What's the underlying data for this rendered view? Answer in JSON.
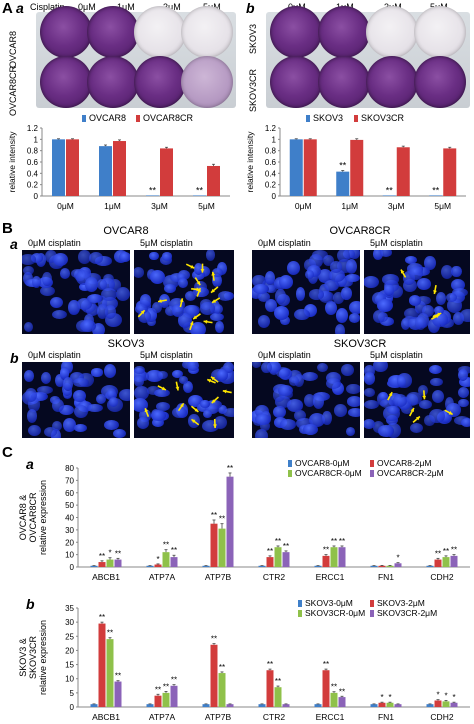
{
  "panelA": {
    "letter": "A",
    "a": {
      "letter": "a",
      "cisplatin_label": "Cisplatin",
      "doses": [
        "0μM",
        "1μM",
        "3μM",
        "5μM"
      ],
      "row_labels": [
        "OVCAR8",
        "OVCAR8CR"
      ],
      "wells": [
        [
          "purple",
          "purple",
          "clear",
          "clear"
        ],
        [
          "purple",
          "purple",
          "purple",
          "lavender"
        ]
      ]
    },
    "b": {
      "letter": "b",
      "doses": [
        "0μM",
        "1μM",
        "3μM",
        "5μM"
      ],
      "row_labels": [
        "SKOV3",
        "SKOV3CR"
      ],
      "wells": [
        [
          "purple",
          "purple",
          "clear",
          "clear"
        ],
        [
          "purple",
          "purple",
          "purple",
          "purple"
        ]
      ]
    }
  },
  "panelB": {
    "letter": "B",
    "a": {
      "letter": "a",
      "groups": [
        {
          "title": "OVCAR8",
          "left": "0μM cisplatin",
          "right": "5μM cisplatin"
        },
        {
          "title": "OVCAR8CR",
          "left": "0μM cisplatin",
          "right": "5μM cisplatin"
        }
      ]
    },
    "b": {
      "letter": "b",
      "groups": [
        {
          "title": "SKOV3",
          "left": "0μM cisplatin",
          "right": "5μM cisplatin"
        },
        {
          "title": "SKOV3CR",
          "left": "0μM cisplatin",
          "right": "5μM cisplatin"
        }
      ]
    }
  },
  "panelC": {
    "letter": "C",
    "a_letter": "a",
    "b_letter": "b"
  },
  "chart_data": [
    {
      "type": "bar",
      "categories": [
        "0μM",
        "1μM",
        "3μM",
        "5μM"
      ],
      "ylabel": "relative intensity",
      "ylim": [
        0,
        1.2
      ],
      "yticks": [
        0,
        0.2,
        0.4,
        0.6,
        0.8,
        1,
        1.2
      ],
      "series": [
        {
          "name": "OVCAR8",
          "color": "#3f7fc9",
          "values": [
            1.0,
            0.88,
            0.01,
            0.01
          ],
          "errors": [
            0.01,
            0.02,
            0.0,
            0.0
          ]
        },
        {
          "name": "OVCAR8CR",
          "color": "#d23c3c",
          "values": [
            1.0,
            0.97,
            0.84,
            0.53
          ],
          "errors": [
            0.01,
            0.02,
            0.02,
            0.03
          ]
        }
      ],
      "annotations": [
        {
          "series": 0,
          "index": 2,
          "text": "**"
        },
        {
          "series": 0,
          "index": 3,
          "text": "**"
        }
      ],
      "legend": "top"
    },
    {
      "type": "bar",
      "categories": [
        "0μM",
        "1μM",
        "3μM",
        "5μM"
      ],
      "ylabel": "relative intensity",
      "ylim": [
        0,
        1.2
      ],
      "yticks": [
        0,
        0.2,
        0.4,
        0.6,
        0.8,
        1,
        1.2
      ],
      "series": [
        {
          "name": "SKOV3",
          "color": "#3f7fc9",
          "values": [
            1.0,
            0.43,
            0.01,
            0.01
          ],
          "errors": [
            0.01,
            0.02,
            0.0,
            0.0
          ]
        },
        {
          "name": "SKOV3CR",
          "color": "#d23c3c",
          "values": [
            1.0,
            0.99,
            0.86,
            0.84
          ],
          "errors": [
            0.01,
            0.02,
            0.02,
            0.02
          ]
        }
      ],
      "annotations": [
        {
          "series": 0,
          "index": 1,
          "text": "**"
        },
        {
          "series": 0,
          "index": 2,
          "text": "**"
        },
        {
          "series": 0,
          "index": 3,
          "text": "**"
        }
      ],
      "legend": "top"
    },
    {
      "type": "bar",
      "categories": [
        "ABCB1",
        "ATP7A",
        "ATP7B",
        "CTR2",
        "ERCC1",
        "FN1",
        "CDH2"
      ],
      "ylabel": [
        "OVCAR8 &",
        "OVCAR8CR",
        "relative expression"
      ],
      "ylim": [
        0,
        80
      ],
      "yticks": [
        0,
        10,
        20,
        30,
        40,
        50,
        60,
        70,
        80
      ],
      "series": [
        {
          "name": "OVCAR8-0μM",
          "color": "#3f7fc9",
          "values": [
            1,
            1,
            1,
            1,
            1,
            1,
            1
          ],
          "errors": [
            0.1,
            0.1,
            0.1,
            0.1,
            0.1,
            0.1,
            0.1
          ]
        },
        {
          "name": "OVCAR8-2μM",
          "color": "#d23c3c",
          "values": [
            4,
            2,
            35,
            8,
            9,
            1,
            6
          ],
          "errors": [
            1,
            0.5,
            3,
            1,
            1,
            0.3,
            1
          ]
        },
        {
          "name": "OVCAR8CR-0μM",
          "color": "#8fc14a",
          "values": [
            6,
            12,
            31,
            16,
            16,
            1,
            8
          ],
          "errors": [
            1.5,
            2,
            4,
            1,
            1,
            0.3,
            1
          ]
        },
        {
          "name": "OVCAR8CR-2μM",
          "color": "#8b63b8",
          "values": [
            6,
            8,
            73,
            12,
            16,
            3,
            9
          ],
          "errors": [
            1,
            1.5,
            3,
            1,
            1,
            0.5,
            1
          ]
        }
      ],
      "annotations": [
        {
          "series": 1,
          "index": 0,
          "text": "**"
        },
        {
          "series": 2,
          "index": 0,
          "text": "*"
        },
        {
          "series": 3,
          "index": 0,
          "text": "**"
        },
        {
          "series": 1,
          "index": 1,
          "text": "*"
        },
        {
          "series": 2,
          "index": 1,
          "text": "**"
        },
        {
          "series": 3,
          "index": 1,
          "text": "**"
        },
        {
          "series": 1,
          "index": 2,
          "text": "**"
        },
        {
          "series": 2,
          "index": 2,
          "text": "**"
        },
        {
          "series": 3,
          "index": 2,
          "text": "**"
        },
        {
          "series": 1,
          "index": 3,
          "text": "**"
        },
        {
          "series": 2,
          "index": 3,
          "text": "**"
        },
        {
          "series": 3,
          "index": 3,
          "text": "**"
        },
        {
          "series": 1,
          "index": 4,
          "text": "**"
        },
        {
          "series": 2,
          "index": 4,
          "text": "**"
        },
        {
          "series": 3,
          "index": 4,
          "text": "**"
        },
        {
          "series": 3,
          "index": 5,
          "text": "*"
        },
        {
          "series": 1,
          "index": 6,
          "text": "**"
        },
        {
          "series": 2,
          "index": 6,
          "text": "**"
        },
        {
          "series": 3,
          "index": 6,
          "text": "**"
        }
      ],
      "legend": "top-right"
    },
    {
      "type": "bar",
      "categories": [
        "ABCB1",
        "ATP7A",
        "ATP7B",
        "CTR2",
        "ERCC1",
        "FN1",
        "CDH2"
      ],
      "ylabel": [
        "SKOV3 &",
        "SKOV3CR",
        "relative expression"
      ],
      "ylim": [
        0,
        35
      ],
      "yticks": [
        0,
        5,
        10,
        15,
        20,
        25,
        30,
        35
      ],
      "series": [
        {
          "name": "SKOV3-0μM",
          "color": "#3f7fc9",
          "values": [
            1,
            1,
            1,
            1,
            1,
            1,
            1
          ],
          "errors": [
            0.1,
            0.1,
            0.1,
            0.1,
            0.1,
            0.1,
            0.1
          ]
        },
        {
          "name": "SKOV3-2μM",
          "color": "#d23c3c",
          "values": [
            29.5,
            4,
            22,
            13,
            13,
            1.5,
            2.3
          ],
          "errors": [
            0.5,
            0.5,
            0.4,
            0.4,
            0.4,
            0.2,
            0.3
          ]
        },
        {
          "name": "SKOV3CR-0μM",
          "color": "#8fc14a",
          "values": [
            24,
            5,
            12,
            7,
            5,
            1.5,
            2
          ],
          "errors": [
            0.5,
            0.5,
            0.4,
            0.4,
            0.4,
            0.2,
            0.3
          ]
        },
        {
          "name": "SKOV3CR-2μM",
          "color": "#8b63b8",
          "values": [
            9,
            7.5,
            1,
            1,
            3.5,
            1,
            1.5
          ],
          "errors": [
            0.3,
            0.4,
            0.1,
            0.1,
            0.3,
            0.1,
            0.2
          ]
        }
      ],
      "annotations": [
        {
          "series": 1,
          "index": 0,
          "text": "**"
        },
        {
          "series": 2,
          "index": 0,
          "text": "**"
        },
        {
          "series": 3,
          "index": 0,
          "text": "**"
        },
        {
          "series": 1,
          "index": 1,
          "text": "**"
        },
        {
          "series": 2,
          "index": 1,
          "text": "**"
        },
        {
          "series": 3,
          "index": 1,
          "text": "**"
        },
        {
          "series": 1,
          "index": 2,
          "text": "**"
        },
        {
          "series": 2,
          "index": 2,
          "text": "**"
        },
        {
          "series": 1,
          "index": 3,
          "text": "**"
        },
        {
          "series": 2,
          "index": 3,
          "text": "**"
        },
        {
          "series": 1,
          "index": 4,
          "text": "**"
        },
        {
          "series": 2,
          "index": 4,
          "text": "**"
        },
        {
          "series": 3,
          "index": 4,
          "text": "**"
        },
        {
          "series": 1,
          "index": 5,
          "text": "*"
        },
        {
          "series": 2,
          "index": 5,
          "text": "*"
        },
        {
          "series": 1,
          "index": 6,
          "text": "*"
        },
        {
          "series": 2,
          "index": 6,
          "text": "*"
        },
        {
          "series": 3,
          "index": 6,
          "text": "*"
        }
      ],
      "legend": "top-right"
    }
  ]
}
